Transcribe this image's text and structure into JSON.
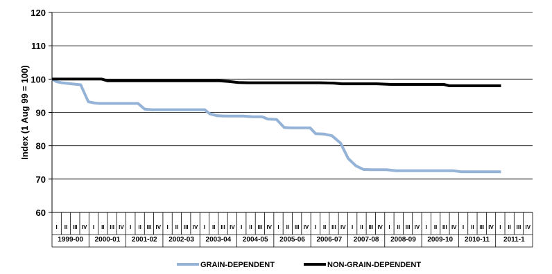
{
  "chart_data": {
    "type": "line",
    "title": "",
    "xlabel": "",
    "ylabel": "Index (1 Aug 99 = 100)",
    "ylim": [
      60,
      120
    ],
    "yticks": [
      60,
      70,
      80,
      90,
      100,
      110,
      120
    ],
    "grid": true,
    "legend_position": "bottom",
    "quarters": [
      "I",
      "II",
      "III",
      "IV"
    ],
    "years": [
      "1999-00",
      "2000-01",
      "2001-02",
      "2002-03",
      "2003-04",
      "2004-05",
      "2005-06",
      "2006-07",
      "2007-08",
      "2008-09",
      "2009-10",
      "2010-11",
      "2011-1"
    ],
    "series": [
      {
        "name": "GRAIN-DEPENDENT",
        "color": "#95b3d7",
        "values": [
          [
            0,
            100
          ],
          [
            0.5,
            99.2
          ],
          [
            1,
            98.9
          ],
          [
            2,
            98.6
          ],
          [
            3,
            98.3
          ],
          [
            3.8,
            93.2
          ],
          [
            4.5,
            92.8
          ],
          [
            5,
            92.7
          ],
          [
            6,
            92.7
          ],
          [
            7,
            92.7
          ],
          [
            8,
            92.7
          ],
          [
            9,
            92.7
          ],
          [
            9.7,
            91
          ],
          [
            10.5,
            90.8
          ],
          [
            11,
            90.8
          ],
          [
            12,
            90.8
          ],
          [
            13,
            90.8
          ],
          [
            14,
            90.8
          ],
          [
            15,
            90.8
          ],
          [
            16,
            90.8
          ],
          [
            16.5,
            89.6
          ],
          [
            17.3,
            89
          ],
          [
            18,
            88.9
          ],
          [
            19,
            88.9
          ],
          [
            20,
            88.9
          ],
          [
            21,
            88.7
          ],
          [
            22,
            88.7
          ],
          [
            22.6,
            88
          ],
          [
            23.5,
            87.9
          ],
          [
            24.3,
            85.5
          ],
          [
            25,
            85.4
          ],
          [
            26,
            85.4
          ],
          [
            27,
            85.4
          ],
          [
            27.6,
            83.6
          ],
          [
            28.5,
            83.5
          ],
          [
            29.3,
            83
          ],
          [
            30.2,
            80.8
          ],
          [
            31,
            76.2
          ],
          [
            31.8,
            74
          ],
          [
            32.6,
            72.9
          ],
          [
            33.3,
            72.8
          ],
          [
            34,
            72.8
          ],
          [
            35,
            72.8
          ],
          [
            36,
            72.5
          ],
          [
            37,
            72.5
          ],
          [
            38,
            72.5
          ],
          [
            39,
            72.5
          ],
          [
            40,
            72.5
          ],
          [
            41,
            72.5
          ],
          [
            42,
            72.5
          ],
          [
            42.8,
            72.2
          ],
          [
            44,
            72.2
          ],
          [
            45,
            72.2
          ],
          [
            46,
            72.2
          ],
          [
            47,
            72.2
          ]
        ]
      },
      {
        "name": "NON-GRAIN-DEPENDENT",
        "color": "#000000",
        "values": [
          [
            0,
            100
          ],
          [
            2,
            100
          ],
          [
            4,
            100
          ],
          [
            5.2,
            100
          ],
          [
            5.8,
            99.5
          ],
          [
            8,
            99.5
          ],
          [
            10,
            99.5
          ],
          [
            12,
            99.5
          ],
          [
            14,
            99.5
          ],
          [
            16,
            99.5
          ],
          [
            17.5,
            99.5
          ],
          [
            18.5,
            99.3
          ],
          [
            19.5,
            99
          ],
          [
            20.5,
            98.9
          ],
          [
            22,
            98.9
          ],
          [
            24,
            98.9
          ],
          [
            26,
            98.9
          ],
          [
            28,
            98.9
          ],
          [
            29.5,
            98.8
          ],
          [
            30.3,
            98.6
          ],
          [
            32,
            98.6
          ],
          [
            34,
            98.6
          ],
          [
            35.5,
            98.4
          ],
          [
            37,
            98.4
          ],
          [
            39,
            98.4
          ],
          [
            41,
            98.4
          ],
          [
            41.6,
            98
          ],
          [
            43,
            98
          ],
          [
            45,
            98
          ],
          [
            47,
            98
          ]
        ]
      }
    ]
  }
}
